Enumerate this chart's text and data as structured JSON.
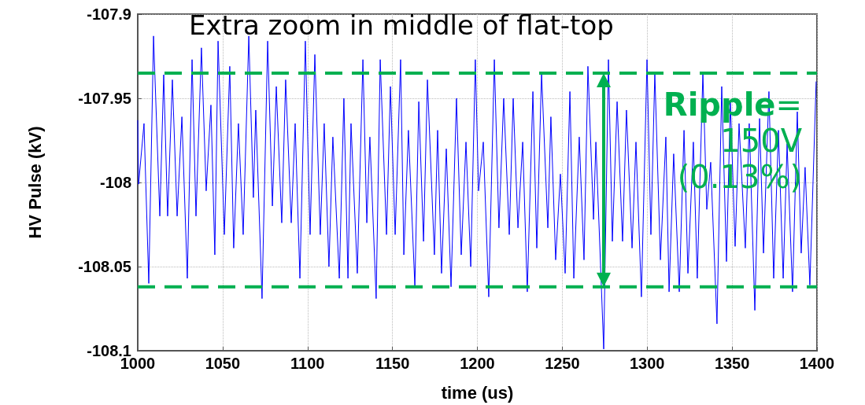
{
  "chart_data": {
    "type": "line",
    "title": "Extra zoom in middle of flat-top",
    "xlabel": "time (us)",
    "ylabel": "HV Pulse (kV)",
    "annotations": [
      "Ripple= 150V (0.13%)"
    ],
    "x": [
      1000,
      1000.5,
      1003.7,
      1006.5,
      1009.3,
      1013,
      1015.3,
      1017.6,
      1020.4,
      1023.2,
      1026,
      1029.2,
      1032,
      1034.3,
      1037.5,
      1040.3,
      1043.1,
      1045.4,
      1047.3,
      1051,
      1054.2,
      1056.5,
      1059.3,
      1062.1,
      1065.4,
      1068.1,
      1069.5,
      1073.2,
      1076.5,
      1079.3,
      1081.6,
      1084.8,
      1087.1,
      1090.4,
      1092.7,
      1095.5,
      1098.7,
      1101.5,
      1104.3,
      1107.5,
      1109.8,
      1112.6,
      1114.9,
      1118.7,
      1121.4,
      1123.8,
      1125.6,
      1129.3,
      1132.6,
      1134.9,
      1136.7,
      1140.4,
      1142.8,
      1146.5,
      1148.8,
      1151.6,
      1154.8,
      1156.7,
      1159.4,
      1163.2,
      1165.5,
      1168.3,
      1170.6,
      1174.7,
      1176.6,
      1178.9,
      1181.7,
      1184.5,
      1187.7,
      1190.5,
      1193.3,
      1196.1,
      1198.8,
      1200.7,
      1203.5,
      1206.7,
      1210,
      1212.7,
      1215.5,
      1218.8,
      1221.1,
      1223.9,
      1226.7,
      1229.4,
      1232.7,
      1235,
      1237.8,
      1241.5,
      1243.3,
      1246.1,
      1248.9,
      1251.7,
      1254.5,
      1256.8,
      1260,
      1262.8,
      1265.1,
      1268.4,
      1269.8,
      1274.4,
      1277.2,
      1279.5,
      1282.3,
      1285.5,
      1287.8,
      1291.1,
      1293.4,
      1296.6,
      1299.9,
      1302.2,
      1304.5,
      1307.8,
      1311,
      1312.9,
      1315.6,
      1318.9,
      1321.7,
      1324,
      1327.2,
      1329.5,
      1332.8,
      1335.1,
      1337.4,
      1341.1,
      1343.9,
      1346.7,
      1349,
      1351.8,
      1354.1,
      1357.8,
      1360.1,
      1363.4,
      1366.2,
      1368.5,
      1371.7,
      1374.5,
      1377.3,
      1380.1,
      1382.4,
      1385.6,
      1388.4,
      1390.7,
      1393,
      1395.8,
      1399.5
    ],
    "series": [
      {
        "color": "#0000ff",
        "values": [
          -107.963,
          -108.001,
          -107.965,
          -108.06,
          -107.913,
          -108.02,
          -107.936,
          -108.02,
          -107.939,
          -108.02,
          -107.961,
          -108.057,
          -107.927,
          -108.02,
          -107.92,
          -108.005,
          -107.954,
          -108.043,
          -107.916,
          -108.031,
          -107.931,
          -108.039,
          -107.965,
          -108.031,
          -107.913,
          -108.009,
          -107.957,
          -108.069,
          -107.916,
          -108.014,
          -107.943,
          -108.024,
          -107.939,
          -108.024,
          -107.965,
          -108.057,
          -107.916,
          -108.031,
          -107.924,
          -108.031,
          -107.965,
          -108.05,
          -107.973,
          -108.057,
          -107.95,
          -108.057,
          -107.965,
          -108.054,
          -107.927,
          -108.024,
          -107.973,
          -108.069,
          -107.927,
          -108.031,
          -107.943,
          -108.031,
          -107.927,
          -108.043,
          -107.969,
          -108.062,
          -107.952,
          -108.035,
          -107.939,
          -108.043,
          -107.969,
          -108.054,
          -107.98,
          -108.062,
          -107.95,
          -108.043,
          -107.976,
          -108.05,
          -107.927,
          -108.005,
          -107.976,
          -108.068,
          -107.927,
          -108.027,
          -107.95,
          -108.031,
          -107.95,
          -108.027,
          -107.976,
          -108.065,
          -107.946,
          -108.039,
          -107.935,
          -108.027,
          -107.961,
          -108.046,
          -107.995,
          -108.054,
          -107.946,
          -108.057,
          -107.973,
          -108.046,
          -107.931,
          -108.022,
          -107.976,
          -108.099,
          -107.927,
          -108.035,
          -107.952,
          -108.035,
          -107.957,
          -108.039,
          -107.976,
          -108.068,
          -107.927,
          -108.031,
          -107.935,
          -108.046,
          -107.973,
          -108.065,
          -107.983,
          -108.065,
          -107.969,
          -108.054,
          -107.976,
          -108.057,
          -107.935,
          -108.016,
          -107.988,
          -108.084,
          -107.943,
          -108.047,
          -107.952,
          -108.038,
          -107.965,
          -108.039,
          -107.965,
          -108.076,
          -107.962,
          -108.042,
          -107.946,
          -108.057,
          -107.969,
          -108.057,
          -107.977,
          -108.065,
          -107.958,
          -108.042,
          -107.991,
          -108.061,
          -107.94
        ]
      }
    ],
    "ref_lines": [
      {
        "axis": "y",
        "value": -107.935,
        "color": "#00b050",
        "line_style": "dashed"
      },
      {
        "axis": "y",
        "value": -108.062,
        "color": "#00b050",
        "line_style": "dashed"
      }
    ],
    "xlim": [
      1000,
      1400
    ],
    "xticks": [
      1000,
      1050,
      1100,
      1150,
      1200,
      1250,
      1300,
      1350,
      1400
    ],
    "ylim": [
      -108.1,
      -107.9
    ],
    "yticks": [
      -108.1,
      -108.05,
      -108,
      -107.95,
      -107.9
    ],
    "grid": true,
    "marker": "none",
    "line_style": "solid"
  }
}
